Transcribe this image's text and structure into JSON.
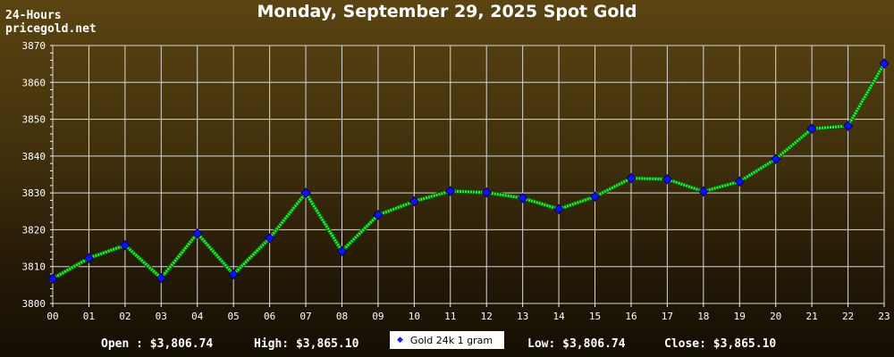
{
  "header": {
    "title": "Monday, September 29, 2025 Spot Gold",
    "brand_line1": "24-Hours",
    "brand_line2": "pricegold.net"
  },
  "footer": {
    "open": "Open : $3,806.74",
    "high": "High: $3,865.10",
    "low": "Low: $3,806.74",
    "close": "Close: $3,865.10"
  },
  "legend": {
    "label": "Gold 24k 1 gram"
  },
  "colors": {
    "line": "#33ee33",
    "marker": "#1010ff",
    "grid": "#d8d8d8",
    "axis": "#ffffff"
  },
  "chart_data": {
    "type": "line",
    "title": "Monday, September 29, 2025 Spot Gold",
    "xlabel": "",
    "ylabel": "",
    "categories": [
      "00",
      "01",
      "02",
      "03",
      "04",
      "05",
      "06",
      "07",
      "08",
      "09",
      "10",
      "11",
      "12",
      "13",
      "14",
      "15",
      "16",
      "17",
      "18",
      "19",
      "20",
      "21",
      "22",
      "23"
    ],
    "series": [
      {
        "name": "Gold 24k 1 gram",
        "values": [
          3806.74,
          3812.3,
          3815.8,
          3806.9,
          3819.0,
          3807.9,
          3817.7,
          3830.0,
          3814.2,
          3824.0,
          3827.7,
          3830.5,
          3830.1,
          3828.6,
          3825.6,
          3829.0,
          3834.0,
          3833.7,
          3830.4,
          3833.1,
          3839.2,
          3847.4,
          3848.2,
          3865.1
        ]
      }
    ],
    "ylim": [
      3800,
      3870
    ],
    "yticks": [
      3800,
      3810,
      3820,
      3830,
      3840,
      3850,
      3860,
      3870
    ],
    "grid": true,
    "legend_position": "bottom-center"
  }
}
